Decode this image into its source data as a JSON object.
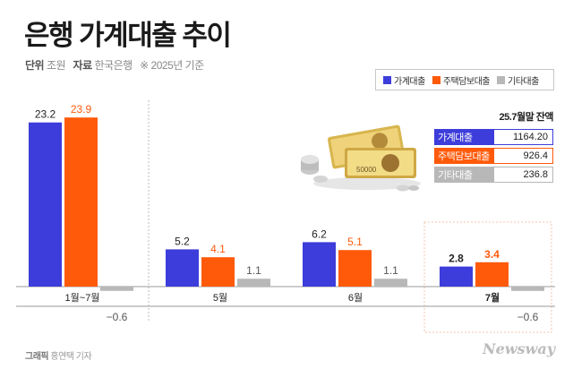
{
  "title": "은행 가계대출 추이",
  "subtitle": {
    "unit_label": "단위",
    "unit": "조원",
    "source_label": "자료",
    "source": "한국은행",
    "note": "※ 2025년 기준"
  },
  "legend": [
    "가계대출",
    "주택담보대출",
    "기타대출"
  ],
  "colors": {
    "household": "#3d3ddb",
    "mortgage": "#ff5a0a",
    "other": "#b8b8b8",
    "highlight_border": "#f7c6a8"
  },
  "balance": {
    "title": "25.7월말 잔액",
    "rows": [
      {
        "label": "가계대출",
        "value": "1164.20"
      },
      {
        "label": "주택담보대출",
        "value": "926.4"
      },
      {
        "label": "기타대출",
        "value": "236.8"
      }
    ]
  },
  "chart_data": {
    "type": "bar",
    "categories": [
      "1월~7월",
      "5월",
      "6월",
      "7월"
    ],
    "series": [
      {
        "name": "가계대출",
        "values": [
          23.2,
          5.2,
          6.2,
          2.8
        ]
      },
      {
        "name": "주택담보대출",
        "values": [
          23.9,
          4.1,
          5.1,
          3.4
        ]
      },
      {
        "name": "기타대출",
        "values": [
          -0.6,
          1.1,
          1.1,
          -0.6
        ]
      }
    ],
    "value_labels": [
      [
        "23.2",
        "5.2",
        "6.2",
        "2.8"
      ],
      [
        "23.9",
        "4.1",
        "5.1",
        "3.4"
      ],
      [
        "−0.6",
        "1.1",
        "1.1",
        "−0.6"
      ]
    ],
    "highlighted_category": "7월"
  },
  "footer": {
    "credit_label": "그래픽",
    "credit_name": "홍연택 기자",
    "brand": "Newsway"
  }
}
